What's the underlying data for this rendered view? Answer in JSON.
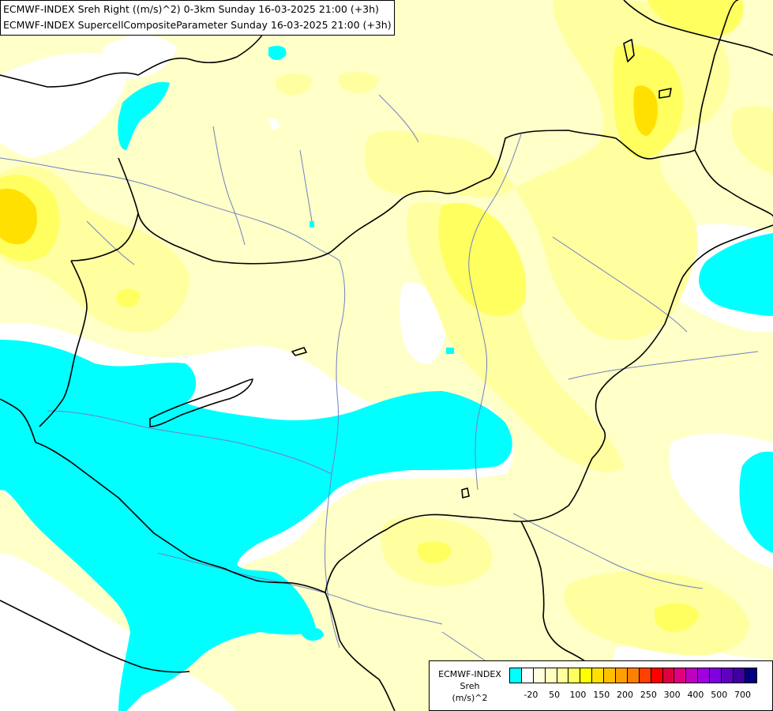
{
  "header": {
    "line1": "ECMWF-INDEX Sreh Right ((m/s)^2) 0-3km Sunday 16-03-2025 21:00 (+3h)",
    "line2": "ECMWF-INDEX SupercellCompositeParameter Sunday 16-03-2025 21:00 (+3h)"
  },
  "legend": {
    "title1": "ECMWF-INDEX",
    "title2": "Sreh",
    "unit": "(m/s)^2",
    "colors": [
      "#00ffff",
      "#ffffff",
      "#ffffe0",
      "#ffffc0",
      "#ffffa0",
      "#ffff60",
      "#ffff00",
      "#ffe000",
      "#ffc000",
      "#ffa000",
      "#ff8000",
      "#ff4000",
      "#ff0000",
      "#e00040",
      "#e00080",
      "#c000c0",
      "#a000e0",
      "#8000e0",
      "#6000c0",
      "#4000a0",
      "#000080"
    ],
    "ticks": [
      "-20",
      "50",
      "100",
      "150",
      "200",
      "250",
      "300",
      "400",
      "500",
      "700"
    ]
  },
  "map": {
    "fill_colors": {
      "background": "#ffffc8",
      "white": "#ffffff",
      "cyan": "#00ffff",
      "light_yellow": "#ffffa0",
      "yellow": "#ffff60",
      "deep_yellow": "#ffff00",
      "gold": "#ffe000"
    },
    "border_color": "#000000",
    "river_color": "#7080c0"
  }
}
